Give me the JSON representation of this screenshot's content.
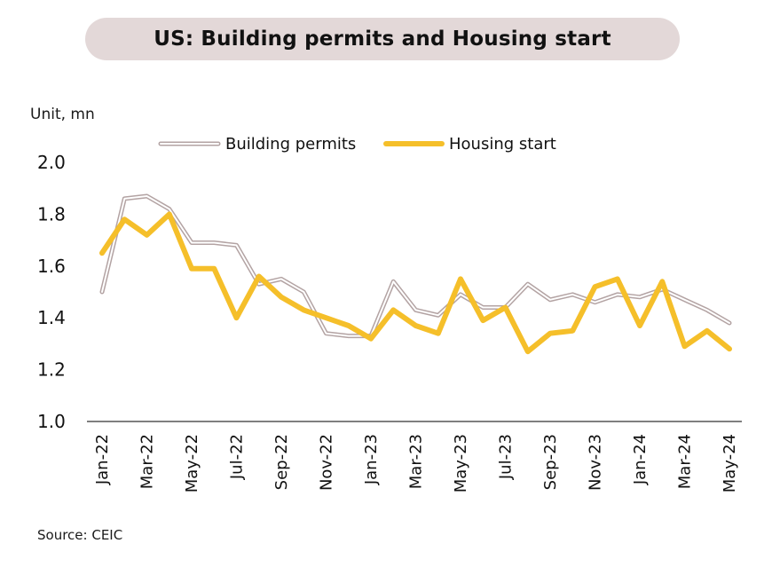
{
  "header": {
    "title": "US: Building permits and Housing start"
  },
  "unit_label": "Unit, mn",
  "source": "Source: CEIC",
  "colors": {
    "building_permits": "#b3a3a3",
    "housing_start": "#f5bf2a",
    "axis": "#333333",
    "title_bg": "#e3d8d8"
  },
  "chart_data": {
    "type": "line",
    "title": "US: Building permits and Housing start",
    "ylabel": "Unit, mn",
    "xlabel": "",
    "ylim": [
      1.0,
      2.0
    ],
    "yticks": [
      "2.0",
      "1.8",
      "1.6",
      "1.4",
      "1.2",
      "1.0"
    ],
    "grid": false,
    "legend": "top",
    "x": [
      "Jan-22",
      "Feb-22",
      "Mar-22",
      "Apr-22",
      "May-22",
      "Jun-22",
      "Jul-22",
      "Aug-22",
      "Sep-22",
      "Oct-22",
      "Nov-22",
      "Dec-22",
      "Jan-23",
      "Feb-23",
      "Mar-23",
      "Apr-23",
      "May-23",
      "Jun-23",
      "Jul-23",
      "Aug-23",
      "Sep-23",
      "Oct-23",
      "Nov-23",
      "Dec-23",
      "Jan-24",
      "Feb-24",
      "Mar-24",
      "Apr-24",
      "May-24"
    ],
    "xtick_labels": [
      "Jan-22",
      "Mar-22",
      "May-22",
      "Jul-22",
      "Sep-22",
      "Nov-22",
      "Jan-23",
      "Mar-23",
      "May-23",
      "Jul-23",
      "Sep-23",
      "Nov-23",
      "Jan-24",
      "Mar-24",
      "May-24"
    ],
    "series": [
      {
        "name": "Building permits",
        "values": [
          1.5,
          1.86,
          1.87,
          1.82,
          1.69,
          1.69,
          1.68,
          1.53,
          1.55,
          1.5,
          1.34,
          1.33,
          1.33,
          1.54,
          1.43,
          1.41,
          1.49,
          1.44,
          1.44,
          1.53,
          1.47,
          1.49,
          1.46,
          1.49,
          1.48,
          1.51,
          1.47,
          1.43,
          1.38
        ]
      },
      {
        "name": "Housing start",
        "values": [
          1.65,
          1.78,
          1.72,
          1.8,
          1.59,
          1.59,
          1.4,
          1.56,
          1.48,
          1.43,
          1.4,
          1.37,
          1.32,
          1.43,
          1.37,
          1.34,
          1.55,
          1.39,
          1.44,
          1.27,
          1.34,
          1.35,
          1.52,
          1.55,
          1.37,
          1.54,
          1.29,
          1.35,
          1.28
        ]
      }
    ]
  }
}
